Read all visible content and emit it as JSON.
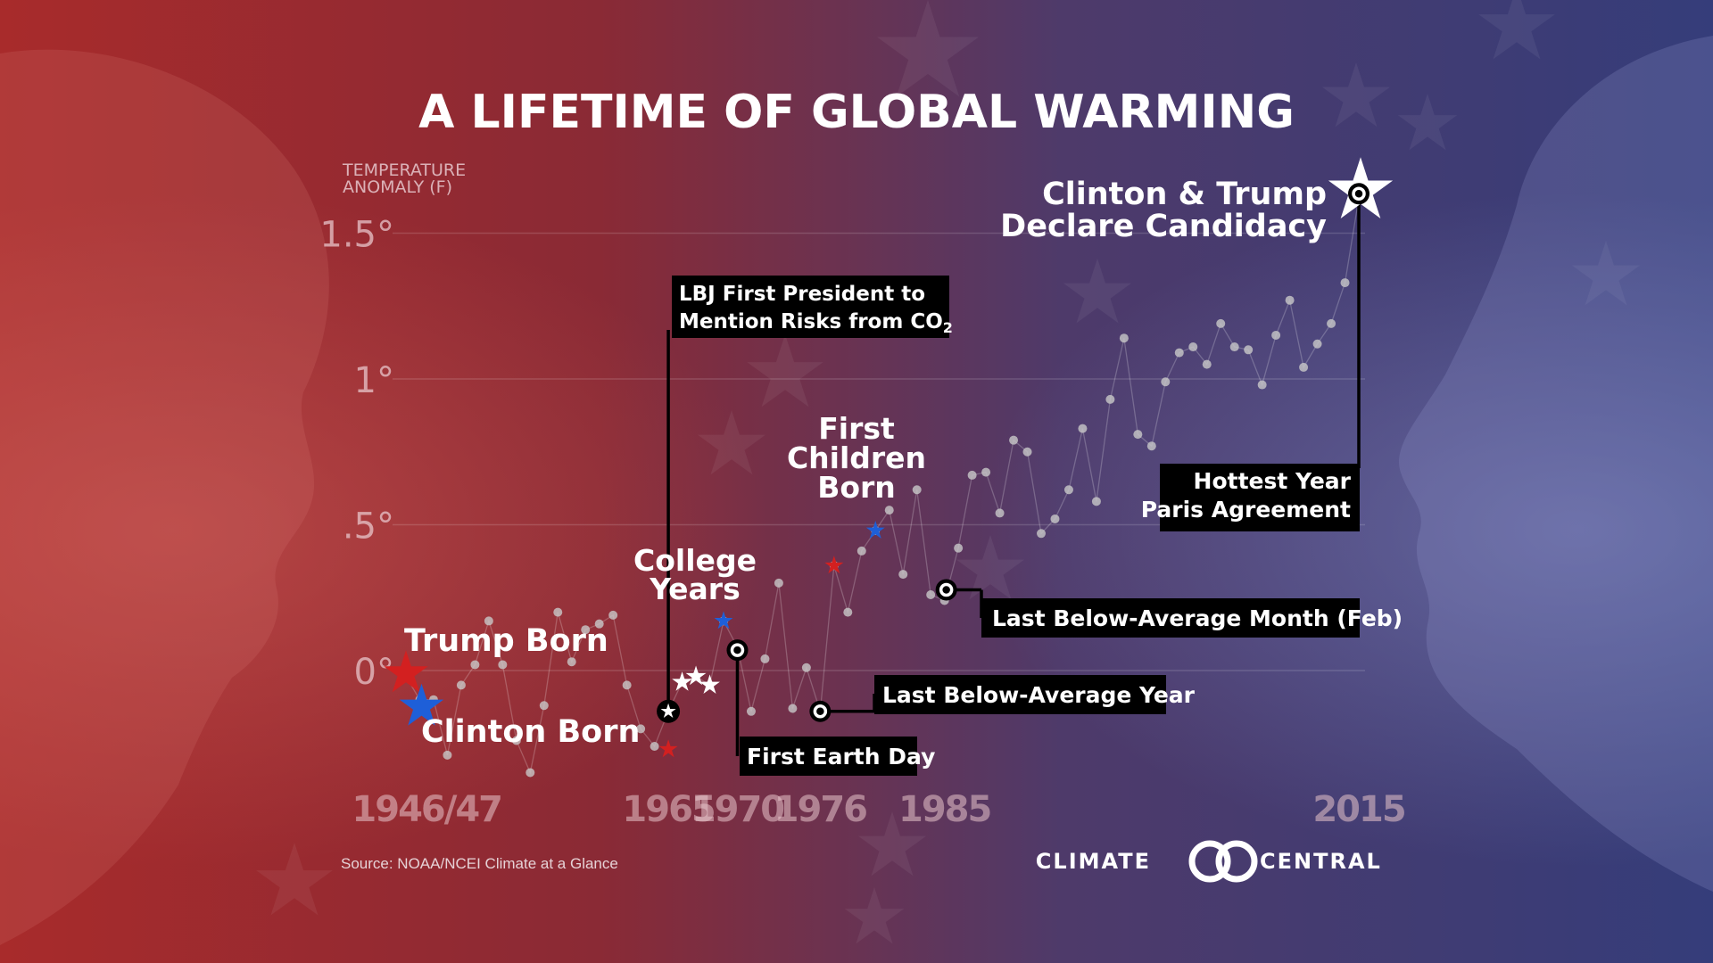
{
  "title": "A LIFETIME OF GLOBAL WARMING",
  "source": "Source: NOAA/NCEI  Climate at a Glance",
  "logo": {
    "left": "CLIMATE",
    "right": "CENTRAL"
  },
  "colors": {
    "bg_left": "#b03030",
    "bg_right": "#3a3f7c",
    "trump_star": "#d32020",
    "clinton_star": "#1e5fd8",
    "point": "#c8c8c8",
    "callout_bg": "#000000",
    "text": "#ffffff"
  },
  "chart_data": {
    "type": "scatter",
    "title": "A LIFETIME OF GLOBAL WARMING",
    "ylabel": "TEMPERATURE ANOMALY (F)",
    "ylim": [
      -0.75,
      1.65
    ],
    "xlim": [
      1945,
      2016
    ],
    "ytick_labels": [
      "0°",
      ".5°",
      "1°",
      "1.5°"
    ],
    "ytick_values": [
      0,
      0.5,
      1,
      1.5
    ],
    "xtick_labels": [
      "1946/47",
      "1965",
      "1970",
      "1976",
      "1985",
      "2015"
    ],
    "xtick_values": [
      1947.5,
      1965,
      1970,
      1976,
      1985,
      2015
    ],
    "grid": true,
    "series": [
      {
        "points": [
          {
            "x": 1946,
            "y": -0.02
          },
          {
            "x": 1947,
            "y": -0.1
          },
          {
            "x": 1948,
            "y": -0.1
          },
          {
            "x": 1949,
            "y": -0.29
          },
          {
            "x": 1950,
            "y": -0.05
          },
          {
            "x": 1951,
            "y": 0.02
          },
          {
            "x": 1952,
            "y": 0.17
          },
          {
            "x": 1953,
            "y": 0.02
          },
          {
            "x": 1954,
            "y": -0.24
          },
          {
            "x": 1955,
            "y": -0.35
          },
          {
            "x": 1956,
            "y": -0.12
          },
          {
            "x": 1957,
            "y": 0.2
          },
          {
            "x": 1958,
            "y": 0.03
          },
          {
            "x": 1959,
            "y": 0.14
          },
          {
            "x": 1960,
            "y": 0.16
          },
          {
            "x": 1961,
            "y": 0.19
          },
          {
            "x": 1962,
            "y": -0.05
          },
          {
            "x": 1963,
            "y": -0.2
          },
          {
            "x": 1964,
            "y": -0.26
          },
          {
            "x": 1965,
            "y": -0.14
          },
          {
            "x": 1966,
            "y": -0.04
          },
          {
            "x": 1967,
            "y": -0.02
          },
          {
            "x": 1968,
            "y": -0.05
          },
          {
            "x": 1969,
            "y": 0.17
          },
          {
            "x": 1970,
            "y": 0.08
          },
          {
            "x": 1971,
            "y": -0.14
          },
          {
            "x": 1972,
            "y": 0.04
          },
          {
            "x": 1973,
            "y": 0.3
          },
          {
            "x": 1974,
            "y": -0.13
          },
          {
            "x": 1975,
            "y": 0.01
          },
          {
            "x": 1976,
            "y": -0.14
          },
          {
            "x": 1977,
            "y": 0.36
          },
          {
            "x": 1978,
            "y": 0.2
          },
          {
            "x": 1979,
            "y": 0.41
          },
          {
            "x": 1980,
            "y": 0.48
          },
          {
            "x": 1981,
            "y": 0.55
          },
          {
            "x": 1982,
            "y": 0.33
          },
          {
            "x": 1983,
            "y": 0.62
          },
          {
            "x": 1984,
            "y": 0.26
          },
          {
            "x": 1985,
            "y": 0.24
          },
          {
            "x": 1986,
            "y": 0.42
          },
          {
            "x": 1987,
            "y": 0.67
          },
          {
            "x": 1988,
            "y": 0.68
          },
          {
            "x": 1989,
            "y": 0.54
          },
          {
            "x": 1990,
            "y": 0.79
          },
          {
            "x": 1991,
            "y": 0.75
          },
          {
            "x": 1992,
            "y": 0.47
          },
          {
            "x": 1993,
            "y": 0.52
          },
          {
            "x": 1994,
            "y": 0.62
          },
          {
            "x": 1995,
            "y": 0.83
          },
          {
            "x": 1996,
            "y": 0.58
          },
          {
            "x": 1997,
            "y": 0.93
          },
          {
            "x": 1998,
            "y": 1.14
          },
          {
            "x": 1999,
            "y": 0.81
          },
          {
            "x": 2000,
            "y": 0.77
          },
          {
            "x": 2001,
            "y": 0.99
          },
          {
            "x": 2002,
            "y": 1.09
          },
          {
            "x": 2003,
            "y": 1.11
          },
          {
            "x": 2004,
            "y": 1.05
          },
          {
            "x": 2005,
            "y": 1.19
          },
          {
            "x": 2006,
            "y": 1.11
          },
          {
            "x": 2007,
            "y": 1.1
          },
          {
            "x": 2008,
            "y": 0.98
          },
          {
            "x": 2009,
            "y": 1.15
          },
          {
            "x": 2010,
            "y": 1.27
          },
          {
            "x": 2011,
            "y": 1.04
          },
          {
            "x": 2012,
            "y": 1.12
          },
          {
            "x": 2013,
            "y": 1.19
          },
          {
            "x": 2014,
            "y": 1.33
          },
          {
            "x": 2015,
            "y": 1.62
          }
        ]
      }
    ],
    "markers": [
      {
        "kind": "star-red",
        "x": 1946,
        "y": -0.01
      },
      {
        "kind": "star-blue",
        "x": 1947,
        "y": -0.1
      },
      {
        "kind": "star-red-small",
        "x": 1965,
        "y": -0.27
      },
      {
        "kind": "star-white",
        "x": 1966,
        "y": -0.04
      },
      {
        "kind": "star-white",
        "x": 1967,
        "y": -0.02
      },
      {
        "kind": "star-white",
        "x": 1968,
        "y": -0.05
      },
      {
        "kind": "star-blue-small",
        "x": 1969,
        "y": 0.17
      },
      {
        "kind": "star-red-small",
        "x": 1977,
        "y": 0.36
      },
      {
        "kind": "star-blue-small",
        "x": 1980,
        "y": 0.48
      }
    ],
    "annotations": [
      {
        "id": "trump-born",
        "text": "Trump Born"
      },
      {
        "id": "clinton-born",
        "text": "Clinton Born"
      },
      {
        "id": "college-years",
        "lines": [
          "College",
          "Years"
        ]
      },
      {
        "id": "first-children",
        "lines": [
          "First",
          "Children",
          "Born"
        ]
      },
      {
        "id": "lbj",
        "lines": [
          "LBJ First President to",
          "Mention Risks from CO"
        ],
        "sub": "2",
        "x": 1965,
        "y": -0.14
      },
      {
        "id": "earth-day",
        "text": "First Earth Day",
        "x": 1970,
        "y": 0.07
      },
      {
        "id": "last-below-year",
        "text": "Last Below-Average Year",
        "x": 1976,
        "y": -0.14
      },
      {
        "id": "last-below-month",
        "text": "Last Below-Average Month (Feb)",
        "x": 1985,
        "y": 0.24
      },
      {
        "id": "hottest",
        "lines": [
          "Hottest Year",
          "Paris Agreement"
        ],
        "x": 2015,
        "y": 1.62
      },
      {
        "id": "declare",
        "lines": [
          "Clinton & Trump",
          "Declare Candidacy"
        ],
        "x": 2015,
        "y": 1.62
      }
    ]
  }
}
